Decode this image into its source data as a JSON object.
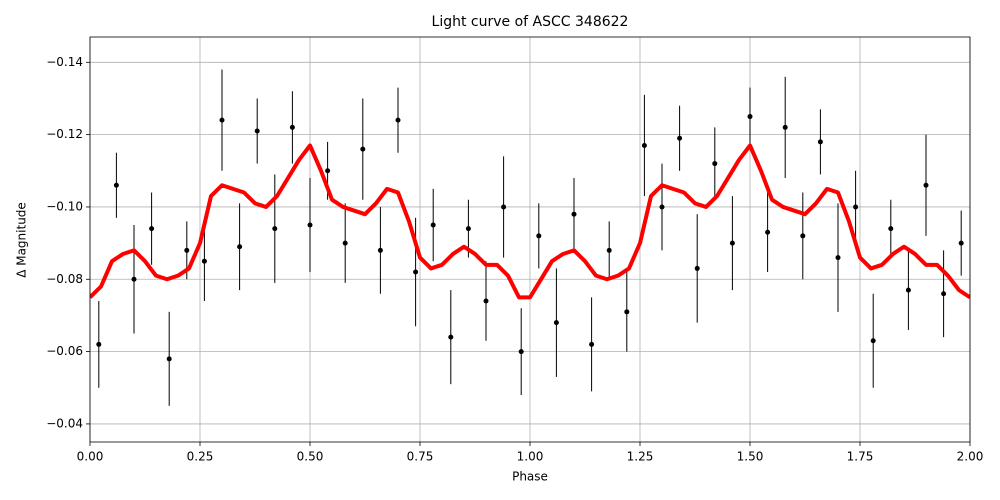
{
  "chart_data": {
    "type": "scatter",
    "title": "Light curve of ASCC 348622",
    "x_label": "Phase",
    "y_label": "Δ Magnitude",
    "xlim": [
      0,
      2
    ],
    "ylim": [
      -0.035,
      -0.147
    ],
    "xticks": [
      {
        "value": 0,
        "label": "0.00"
      },
      {
        "value": 0.25,
        "label": "0.25"
      },
      {
        "value": 0.5,
        "label": "0.50"
      },
      {
        "value": 0.75,
        "label": "0.75"
      },
      {
        "value": 1,
        "label": "1.00"
      },
      {
        "value": 1.25,
        "label": "1.25"
      },
      {
        "value": 1.5,
        "label": "1.50"
      },
      {
        "value": 1.75,
        "label": "1.75"
      },
      {
        "value": 2,
        "label": "2.00"
      }
    ],
    "yticks": [
      {
        "value": -0.14,
        "label": "−0.14"
      },
      {
        "value": -0.12,
        "label": "−0.12"
      },
      {
        "value": -0.1,
        "label": "−0.10"
      },
      {
        "value": -0.08,
        "label": "−0.08"
      },
      {
        "value": -0.06,
        "label": "−0.06"
      },
      {
        "value": -0.04,
        "label": "−0.04"
      }
    ],
    "grid": true,
    "series": [
      {
        "style": "errorbar",
        "color": "#000000",
        "x": [
          0.02,
          0.06,
          0.1,
          0.14,
          0.18,
          0.22,
          0.26,
          0.3,
          0.34,
          0.38,
          0.42,
          0.46,
          0.5,
          0.54,
          0.58,
          0.62,
          0.66,
          0.7,
          0.74,
          0.78,
          0.82,
          0.86,
          0.9,
          0.94,
          0.98,
          1.02,
          1.06,
          1.1,
          1.14,
          1.18,
          1.22,
          1.26,
          1.3,
          1.34,
          1.38,
          1.42,
          1.46,
          1.5,
          1.54,
          1.58,
          1.62,
          1.66,
          1.7,
          1.74,
          1.78,
          1.82,
          1.86,
          1.9,
          1.94,
          1.98
        ],
        "values": [
          -0.062,
          -0.106,
          -0.08,
          -0.094,
          -0.058,
          -0.088,
          -0.085,
          -0.124,
          -0.089,
          -0.121,
          -0.094,
          -0.122,
          -0.095,
          -0.11,
          -0.09,
          -0.116,
          -0.088,
          -0.124,
          -0.082,
          -0.095,
          -0.064,
          -0.094,
          -0.074,
          -0.1,
          -0.06,
          -0.092,
          -0.068,
          -0.098,
          -0.062,
          -0.088,
          -0.071,
          -0.117,
          -0.1,
          -0.119,
          -0.083,
          -0.112,
          -0.09,
          -0.125,
          -0.093,
          -0.122,
          -0.092,
          -0.118,
          -0.086,
          -0.1,
          -0.063,
          -0.094,
          -0.077,
          -0.106,
          -0.076,
          -0.09
        ],
        "errors": [
          0.012,
          0.009,
          0.015,
          0.01,
          0.013,
          0.008,
          0.011,
          0.014,
          0.012,
          0.009,
          0.015,
          0.01,
          0.013,
          0.008,
          0.011,
          0.014,
          0.012,
          0.009,
          0.015,
          0.01,
          0.013,
          0.008,
          0.011,
          0.014,
          0.012,
          0.009,
          0.015,
          0.01,
          0.013,
          0.008,
          0.011,
          0.014,
          0.012,
          0.009,
          0.015,
          0.01,
          0.013,
          0.008,
          0.011,
          0.014,
          0.012,
          0.009,
          0.015,
          0.01,
          0.013,
          0.008,
          0.011,
          0.014,
          0.012,
          0.009
        ]
      },
      {
        "style": "line",
        "color": "#ff0000",
        "x": [
          0,
          0.025,
          0.05,
          0.075,
          0.1,
          0.125,
          0.15,
          0.175,
          0.2,
          0.225,
          0.25,
          0.275,
          0.3,
          0.325,
          0.35,
          0.375,
          0.4,
          0.425,
          0.45,
          0.475,
          0.5,
          0.525,
          0.55,
          0.575,
          0.6,
          0.625,
          0.65,
          0.675,
          0.7,
          0.725,
          0.75,
          0.775,
          0.8,
          0.825,
          0.85,
          0.875,
          0.9,
          0.925,
          0.95,
          0.975,
          1,
          1.025,
          1.05,
          1.075,
          1.1,
          1.125,
          1.15,
          1.175,
          1.2,
          1.225,
          1.25,
          1.275,
          1.3,
          1.325,
          1.35,
          1.375,
          1.4,
          1.425,
          1.45,
          1.475,
          1.5,
          1.525,
          1.55,
          1.575,
          1.6,
          1.625,
          1.65,
          1.675,
          1.7,
          1.725,
          1.75,
          1.775,
          1.8,
          1.825,
          1.85,
          1.875,
          1.9,
          1.925,
          1.95,
          1.975,
          2
        ],
        "values": [
          -0.075,
          -0.078,
          -0.085,
          -0.087,
          -0.088,
          -0.085,
          -0.081,
          -0.08,
          -0.081,
          -0.083,
          -0.09,
          -0.103,
          -0.106,
          -0.105,
          -0.104,
          -0.101,
          -0.1,
          -0.103,
          -0.108,
          -0.113,
          -0.117,
          -0.11,
          -0.102,
          -0.1,
          -0.099,
          -0.098,
          -0.101,
          -0.105,
          -0.104,
          -0.096,
          -0.086,
          -0.083,
          -0.084,
          -0.087,
          -0.089,
          -0.087,
          -0.084,
          -0.084,
          -0.081,
          -0.075,
          -0.075,
          -0.08,
          -0.085,
          -0.087,
          -0.088,
          -0.085,
          -0.081,
          -0.08,
          -0.081,
          -0.083,
          -0.09,
          -0.103,
          -0.106,
          -0.105,
          -0.104,
          -0.101,
          -0.1,
          -0.103,
          -0.108,
          -0.113,
          -0.117,
          -0.11,
          -0.102,
          -0.1,
          -0.099,
          -0.098,
          -0.101,
          -0.105,
          -0.104,
          -0.096,
          -0.086,
          -0.083,
          -0.084,
          -0.087,
          -0.089,
          -0.087,
          -0.084,
          -0.084,
          -0.081,
          -0.077,
          -0.075
        ]
      }
    ]
  }
}
